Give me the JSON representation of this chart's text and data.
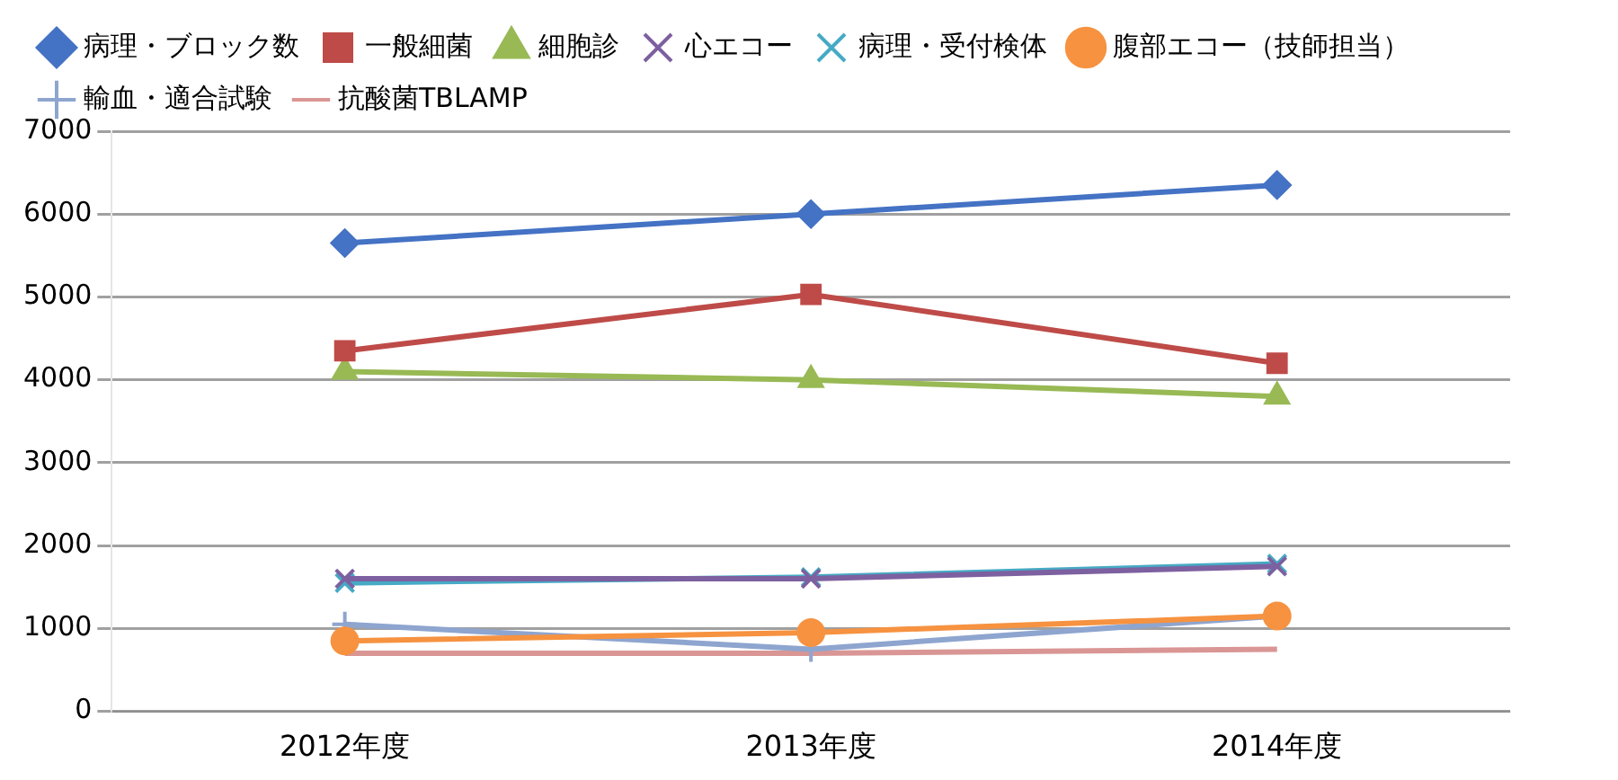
{
  "chart_data": {
    "type": "line",
    "categories": [
      "2012年度",
      "2013年度",
      "2014年度"
    ],
    "series": [
      {
        "name": "病理・ブロック数",
        "color": "#4472c4",
        "marker": "diamond",
        "values": [
          5650,
          6000,
          6350
        ]
      },
      {
        "name": "一般細菌",
        "color": "#be4b48",
        "marker": "square",
        "values": [
          4350,
          5030,
          4200
        ]
      },
      {
        "name": "細胞診",
        "color": "#98b954",
        "marker": "triangle",
        "values": [
          4100,
          4000,
          3800
        ]
      },
      {
        "name": "心エコー",
        "color": "#7d60a0",
        "marker": "cross",
        "values": [
          1600,
          1600,
          1750
        ]
      },
      {
        "name": "病理・受付検体",
        "color": "#46aac5",
        "marker": "cross",
        "values": [
          1550,
          1620,
          1780
        ]
      },
      {
        "name": "腹部エコー（技師担当）",
        "color": "#f69240",
        "marker": "circle",
        "values": [
          850,
          950,
          1150
        ]
      },
      {
        "name": "輸血・適合試験",
        "color": "#8ea5cf",
        "marker": "plus",
        "values": [
          1050,
          750,
          1150
        ]
      },
      {
        "name": "抗酸菌TBLAMP",
        "color": "#d99694",
        "marker": "none",
        "values": [
          700,
          700,
          750
        ]
      }
    ],
    "ylim": [
      0,
      7000
    ],
    "yticks": [
      0,
      1000,
      2000,
      3000,
      4000,
      5000,
      6000,
      7000
    ],
    "grid": "y",
    "legend": "top"
  }
}
